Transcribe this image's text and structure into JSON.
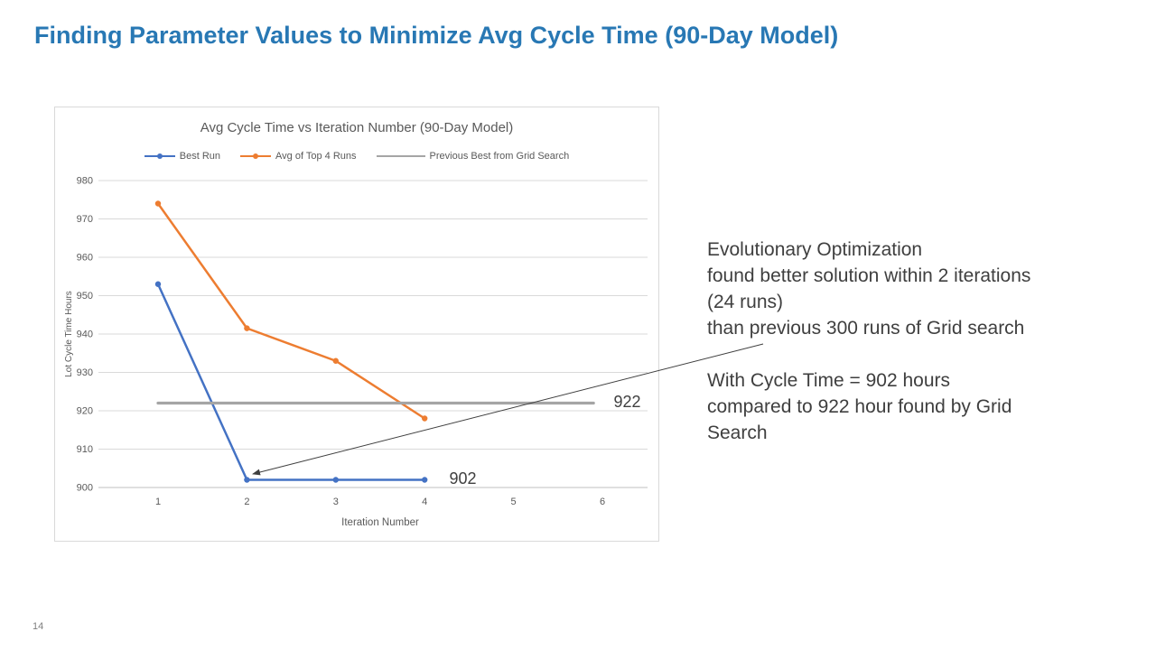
{
  "slide": {
    "title": "Finding Parameter Values to Minimize Avg Cycle Time (90-Day Model)",
    "title_color": "#2878B4",
    "page_number": "14"
  },
  "annotation": {
    "paragraph1": "Evolutionary Optimization\nfound better solution within 2 iterations\n(24 runs)\nthan previous 300 runs of Grid search",
    "paragraph2": "With Cycle Time = 902 hours\ncompared to 922 hour found by Grid\nSearch",
    "arrow": {
      "from": [
        845,
        381
      ],
      "to": [
        280,
        525
      ]
    }
  },
  "chart_data": {
    "type": "line",
    "title": "Avg Cycle Time vs Iteration Number (90-Day Model)",
    "xlabel": "Iteration Number",
    "ylabel": "Lot Cycle Time Hours",
    "xticks": [
      1,
      2,
      3,
      4,
      5,
      6
    ],
    "yticks": [
      900,
      910,
      920,
      930,
      940,
      950,
      960,
      970,
      980
    ],
    "ylim": [
      900,
      980
    ],
    "ytick_step": 10,
    "grid": true,
    "legend_position": "top",
    "series": [
      {
        "name": "Best Run",
        "color": "#4472C4",
        "marker": true,
        "x": [
          1,
          2,
          3,
          4
        ],
        "values": [
          953,
          902,
          902,
          902
        ]
      },
      {
        "name": "Avg of Top 4 Runs",
        "color": "#ED7D31",
        "marker": true,
        "x": [
          1,
          2,
          3,
          4
        ],
        "values": [
          974,
          941.5,
          933,
          918
        ]
      },
      {
        "name": "Previous Best from Grid Search",
        "color": "#A5A5A5",
        "marker": false,
        "x": [
          1,
          5.9
        ],
        "values": [
          922,
          922
        ]
      }
    ],
    "data_labels": [
      {
        "text": "922",
        "x": 6.28,
        "y": 922.3
      },
      {
        "text": "902",
        "x": 4.43,
        "y": 902.3
      }
    ]
  }
}
